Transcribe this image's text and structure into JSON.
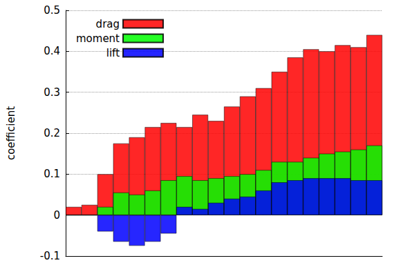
{
  "chart_data": {
    "type": "bar",
    "y_label": "coefficient",
    "categories": [
      null,
      null,
      null,
      null,
      null,
      null,
      null,
      null,
      null,
      null,
      null,
      null,
      null,
      null,
      null,
      null,
      null,
      null,
      null,
      null
    ],
    "series": [
      {
        "name": "drag",
        "color": "#ff0000",
        "values": [
          0.02,
          0.025,
          0.1,
          0.175,
          0.19,
          0.215,
          0.225,
          0.215,
          0.245,
          0.23,
          0.265,
          0.29,
          0.31,
          0.35,
          0.385,
          0.405,
          0.4,
          0.415,
          0.41,
          0.44
        ]
      },
      {
        "name": "moment",
        "color": "#00ff00",
        "values": [
          0,
          0,
          0.02,
          0.055,
          0.05,
          0.06,
          0.085,
          0.095,
          0.085,
          0.09,
          0.095,
          0.1,
          0.11,
          0.13,
          0.13,
          0.14,
          0.15,
          0.155,
          0.16,
          0.17
        ]
      },
      {
        "name": "lift",
        "color": "#0000ff",
        "values": [
          0,
          0,
          -0.04,
          -0.065,
          -0.075,
          -0.065,
          -0.045,
          0.02,
          0.015,
          0.03,
          0.04,
          0.045,
          0.06,
          0.08,
          0.085,
          0.09,
          0.09,
          0.09,
          0.085,
          0.085
        ]
      }
    ],
    "ylim": [
      -0.1,
      0.5
    ],
    "yticks": [
      -0.1,
      0,
      0.1,
      0.2,
      0.3,
      0.4,
      0.5
    ],
    "grid": true,
    "legend": "top-left",
    "tick_labels": "y"
  }
}
